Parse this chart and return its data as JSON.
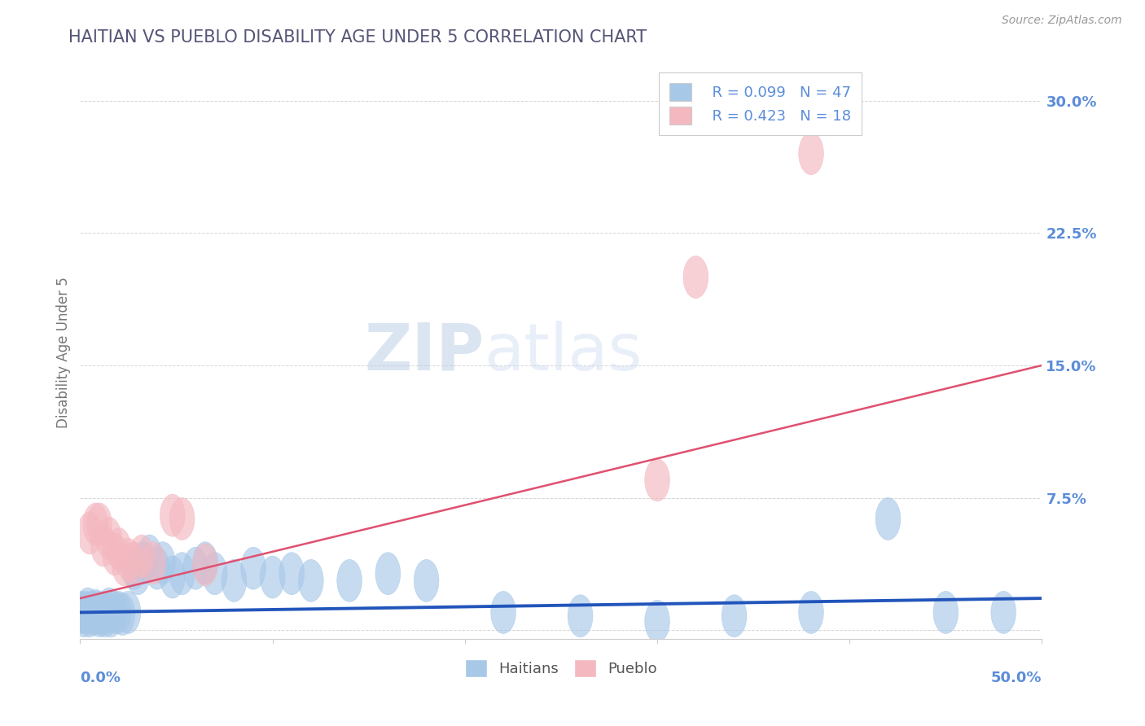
{
  "title": "HAITIAN VS PUEBLO DISABILITY AGE UNDER 5 CORRELATION CHART",
  "source": "Source: ZipAtlas.com",
  "ylabel": "Disability Age Under 5",
  "yticks": [
    0.0,
    0.075,
    0.15,
    0.225,
    0.3
  ],
  "ytick_labels": [
    "",
    "7.5%",
    "15.0%",
    "22.5%",
    "30.0%"
  ],
  "xlim": [
    0.0,
    0.5
  ],
  "ylim": [
    -0.005,
    0.32
  ],
  "haitians_R": 0.099,
  "haitians_N": 47,
  "pueblo_R": 0.423,
  "pueblo_N": 18,
  "haitians_color": "#a8c8e8",
  "pueblo_color": "#f4b8c0",
  "haitians_line_color": "#2255bb",
  "pueblo_line_color": "#e05070",
  "haitians_x": [
    0.001,
    0.002,
    0.003,
    0.004,
    0.005,
    0.006,
    0.007,
    0.008,
    0.009,
    0.01,
    0.011,
    0.012,
    0.013,
    0.014,
    0.015,
    0.016,
    0.018,
    0.02,
    0.022,
    0.025,
    0.028,
    0.03,
    0.033,
    0.036,
    0.04,
    0.043,
    0.048,
    0.053,
    0.06,
    0.065,
    0.07,
    0.08,
    0.09,
    0.1,
    0.11,
    0.12,
    0.14,
    0.16,
    0.18,
    0.22,
    0.26,
    0.3,
    0.34,
    0.38,
    0.42,
    0.45,
    0.48
  ],
  "haitians_y": [
    0.01,
    0.008,
    0.01,
    0.012,
    0.008,
    0.01,
    0.009,
    0.011,
    0.01,
    0.008,
    0.009,
    0.01,
    0.008,
    0.01,
    0.012,
    0.008,
    0.01,
    0.01,
    0.009,
    0.01,
    0.035,
    0.032,
    0.038,
    0.042,
    0.035,
    0.038,
    0.03,
    0.032,
    0.035,
    0.038,
    0.032,
    0.028,
    0.035,
    0.03,
    0.032,
    0.028,
    0.028,
    0.032,
    0.028,
    0.01,
    0.008,
    0.005,
    0.008,
    0.01,
    0.063,
    0.01,
    0.01
  ],
  "pueblo_x": [
    0.005,
    0.008,
    0.01,
    0.012,
    0.015,
    0.018,
    0.02,
    0.023,
    0.025,
    0.028,
    0.032,
    0.038,
    0.048,
    0.053,
    0.065,
    0.3,
    0.32,
    0.38
  ],
  "pueblo_y": [
    0.055,
    0.06,
    0.06,
    0.048,
    0.052,
    0.043,
    0.046,
    0.037,
    0.04,
    0.038,
    0.042,
    0.038,
    0.065,
    0.063,
    0.037,
    0.085,
    0.2,
    0.27
  ],
  "pueblo_line_x0": 0.0,
  "pueblo_line_y0": 0.018,
  "pueblo_line_x1": 0.5,
  "pueblo_line_y1": 0.15,
  "haitians_line_x0": 0.0,
  "haitians_line_y0": 0.01,
  "haitians_line_x1": 0.5,
  "haitians_line_y1": 0.018,
  "xtick_positions": [
    0.0,
    0.1,
    0.2,
    0.3,
    0.4,
    0.5
  ],
  "watermark_zip": "ZIP",
  "watermark_atlas": "atlas",
  "title_color": "#555577",
  "axis_color": "#5b8dd9",
  "tick_color": "#5b8dd9",
  "background_color": "#ffffff",
  "grid_color": "#cccccc"
}
